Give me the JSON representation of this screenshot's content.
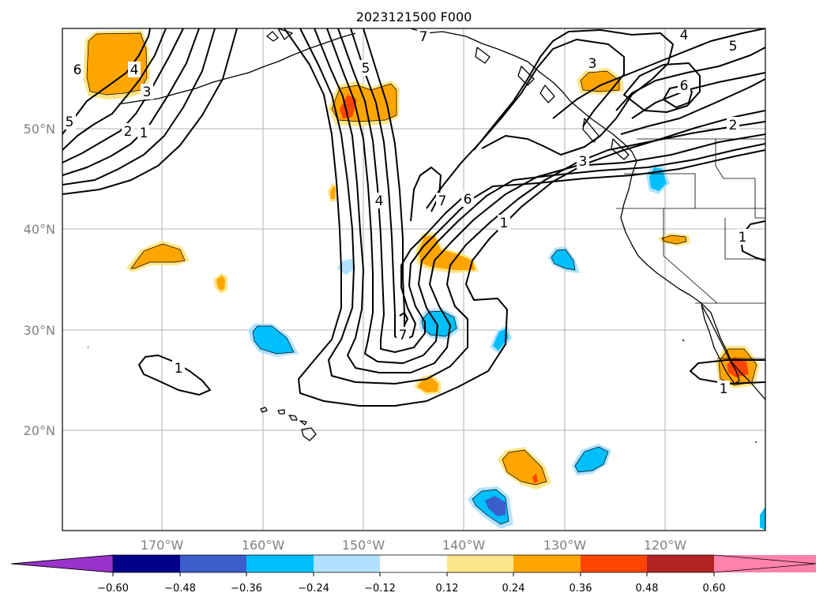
{
  "title": "2023121500 F000",
  "colors": {
    "purple": "#9a32cd",
    "navy": "#00008b",
    "royalblue": "#3a5fcd",
    "deepskyblue": "#00bfff",
    "lightblue": "#b0e2ff",
    "white": "#ffffff",
    "lightyellow": "#fde68a",
    "orange": "#ffa500",
    "orangered": "#ff4500",
    "firebrick": "#b22222",
    "pink": "#ff82ab"
  },
  "lat_labels": [
    "50°N",
    "40°N",
    "30°N",
    "20°N"
  ],
  "lon_labels": [
    "170°W",
    "160°W",
    "150°W",
    "140°W",
    "130°W",
    "120°W"
  ],
  "colorbar": {
    "ticks": [
      "−0.60",
      "−0.48",
      "−0.36",
      "−0.24",
      "−0.12",
      "0.12",
      "0.24",
      "0.36",
      "0.48",
      "0.60"
    ],
    "extend": "both"
  },
  "contour_labels": [
    "6",
    "5",
    "4",
    "3",
    "2",
    "1",
    "7",
    "5",
    "4",
    "7",
    "6",
    "1",
    "7",
    "3",
    "6",
    "5",
    "4",
    "2",
    "3",
    "1",
    "1",
    "1"
  ]
}
